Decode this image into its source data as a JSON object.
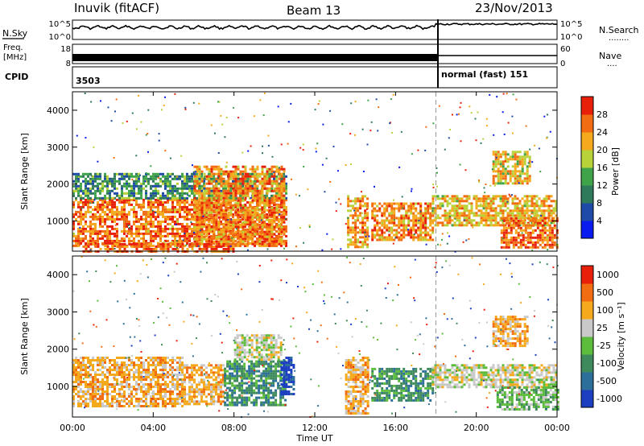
{
  "header": {
    "station": "Inuvik (fitACF)",
    "beam": "Beam 13",
    "date": "23/Nov/2013"
  },
  "strip_labels": {
    "nsky": "N.Sky",
    "nsearch": "N.Search",
    "freq_line1": "Freq.",
    "freq_line2": "[MHz]",
    "nave": "Nave",
    "cpid": "CPID",
    "cpid_dots": "........",
    "nave_dots": "...."
  },
  "noise_panel": {
    "left_ticks": [
      "10^5",
      "10^0"
    ],
    "right_ticks": [
      "10^5",
      "10^0"
    ]
  },
  "freq_panel": {
    "left_ticks": [
      "18",
      "8"
    ],
    "right_ticks": [
      "60",
      "0"
    ]
  },
  "cpid_panel": {
    "segments": [
      {
        "label": "3503",
        "start_hour": 0,
        "end_hour": 18
      },
      {
        "label": "normal (fast) 151",
        "start_hour": 18,
        "end_hour": 24
      }
    ]
  },
  "chart_data": [
    {
      "type": "heatmap",
      "title": "",
      "xlabel": "",
      "ylabel": "Slant Range [km]",
      "xlim": [
        0,
        24
      ],
      "ylim": [
        180,
        4500
      ],
      "y_ticks": [
        1000,
        2000,
        3000,
        4000
      ],
      "colorbar": {
        "label": "Power [dB]",
        "min": 0,
        "max": 30,
        "ticks": [
          "4",
          "8",
          "12",
          "16",
          "20",
          "24",
          "28"
        ],
        "colors": [
          "#0a1bf0",
          "#1f4aa8",
          "#2f7a5a",
          "#3fa34a",
          "#b8d23a",
          "#f5a91c",
          "#f26d12",
          "#e8200a"
        ]
      },
      "regions": [
        {
          "t0": 0.0,
          "t1": 10.6,
          "r0": 300,
          "r1": 1600,
          "level": 0.85
        },
        {
          "t0": 0.0,
          "t1": 10.6,
          "r0": 1600,
          "r1": 2300,
          "level": 0.35
        },
        {
          "t0": 0.5,
          "t1": 8.0,
          "r0": 200,
          "r1": 400,
          "level": 0.9
        },
        {
          "t0": 6.0,
          "t1": 10.5,
          "r0": 400,
          "r1": 2500,
          "level": 0.8
        },
        {
          "t0": 13.6,
          "t1": 14.6,
          "r0": 300,
          "r1": 1700,
          "level": 0.75
        },
        {
          "t0": 14.8,
          "t1": 17.8,
          "r0": 500,
          "r1": 1500,
          "level": 0.8
        },
        {
          "t0": 17.8,
          "t1": 24.0,
          "r0": 900,
          "r1": 1700,
          "level": 0.7
        },
        {
          "t0": 21.2,
          "t1": 24.0,
          "r0": 300,
          "r1": 1100,
          "level": 0.85
        },
        {
          "t0": 20.8,
          "t1": 22.6,
          "r0": 2000,
          "r1": 2900,
          "level": 0.65
        }
      ]
    },
    {
      "type": "heatmap",
      "title": "",
      "xlabel": "Time UT",
      "ylabel": "Slant Range [km]",
      "xlim": [
        0,
        24
      ],
      "ylim": [
        180,
        4500
      ],
      "y_ticks": [
        1000,
        2000,
        3000,
        4000
      ],
      "x_ticks": [
        "00:00",
        "04:00",
        "08:00",
        "12:00",
        "16:00",
        "20:00",
        "00:00"
      ],
      "colorbar": {
        "label": "Velocity [m s⁻¹]",
        "ticks": [
          "1000",
          "500",
          "100",
          "25",
          "-25",
          "-100",
          "-500",
          "-1000"
        ],
        "colors": [
          "#1c3ec0",
          "#2c6f9a",
          "#3f8a5c",
          "#5cbc3c",
          "#c9c9c9",
          "#f5a91c",
          "#f26d12",
          "#e8200a"
        ]
      },
      "regions": [
        {
          "t0": 0.0,
          "t1": 5.5,
          "r0": 500,
          "r1": 1800,
          "cls": 5
        },
        {
          "t0": 5.5,
          "t1": 7.5,
          "r0": 500,
          "r1": 1600,
          "cls": 5
        },
        {
          "t0": 7.5,
          "t1": 10.5,
          "r0": 500,
          "r1": 1700,
          "cls": 2
        },
        {
          "t0": 8.0,
          "t1": 10.3,
          "r0": 1700,
          "r1": 2400,
          "cls": 4
        },
        {
          "t0": 10.3,
          "t1": 11.0,
          "r0": 800,
          "r1": 1800,
          "cls": 0
        },
        {
          "t0": 13.5,
          "t1": 14.6,
          "r0": 300,
          "r1": 1800,
          "cls": 5
        },
        {
          "t0": 14.8,
          "t1": 17.8,
          "r0": 600,
          "r1": 1500,
          "cls": 2
        },
        {
          "t0": 17.8,
          "t1": 24.0,
          "r0": 1000,
          "r1": 1600,
          "cls": 4
        },
        {
          "t0": 21.0,
          "t1": 24.0,
          "r0": 400,
          "r1": 1000,
          "cls": 3
        },
        {
          "t0": 20.8,
          "t1": 22.5,
          "r0": 2100,
          "r1": 2900,
          "cls": 5
        }
      ]
    }
  ]
}
